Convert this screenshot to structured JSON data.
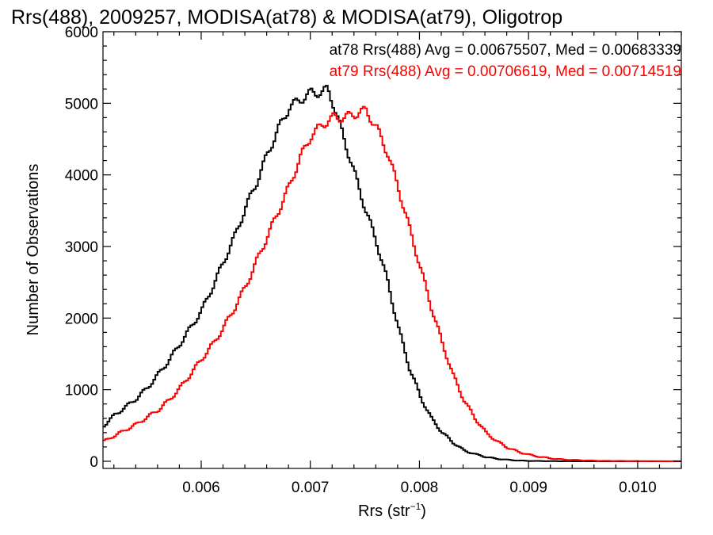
{
  "chart_data": {
    "type": "histogram",
    "title": "Rrs(488), 2009257, MODISA(at78) & MODISA(at79), Oligotrop",
    "xlabel": "Rrs (str",
    "xlabel_superscript": "−1",
    "xlabel_suffix": ")",
    "ylabel": "Number of Observations",
    "xlim": [
      0.0051,
      0.0104
    ],
    "ylim": [
      -100,
      6000
    ],
    "x_ticks": [
      0.006,
      0.007,
      0.008,
      0.009,
      0.01
    ],
    "x_tick_labels": [
      "0.006",
      "0.007",
      "0.008",
      "0.009",
      "0.010"
    ],
    "y_ticks": [
      0,
      1000,
      2000,
      3000,
      4000,
      5000,
      6000
    ],
    "y_tick_labels": [
      "0",
      "1000",
      "2000",
      "3000",
      "4000",
      "5000",
      "6000"
    ],
    "grid": false,
    "legend_position": "top-right",
    "series": [
      {
        "name": "at78",
        "color": "#000000",
        "annotation": "at78 Rrs(488) Avg = 0.00675507, Med = 0.00683339",
        "points": [
          [
            0.0051,
            500
          ],
          [
            0.0052,
            650
          ],
          [
            0.0053,
            760
          ],
          [
            0.0054,
            880
          ],
          [
            0.0055,
            1030
          ],
          [
            0.0056,
            1220
          ],
          [
            0.0057,
            1420
          ],
          [
            0.0058,
            1650
          ],
          [
            0.0059,
            1880
          ],
          [
            0.006,
            2120
          ],
          [
            0.0061,
            2450
          ],
          [
            0.0062,
            2800
          ],
          [
            0.0063,
            3150
          ],
          [
            0.0064,
            3550
          ],
          [
            0.0065,
            3900
          ],
          [
            0.0066,
            4300
          ],
          [
            0.0067,
            4650
          ],
          [
            0.0068,
            4950
          ],
          [
            0.0069,
            5050
          ],
          [
            0.007,
            5150
          ],
          [
            0.0071,
            5150
          ],
          [
            0.00715,
            5200
          ],
          [
            0.0072,
            5000
          ],
          [
            0.0073,
            4500
          ],
          [
            0.0074,
            4000
          ],
          [
            0.0075,
            3500
          ],
          [
            0.0076,
            3050
          ],
          [
            0.0077,
            2500
          ],
          [
            0.0078,
            1850
          ],
          [
            0.0079,
            1300
          ],
          [
            0.008,
            900
          ],
          [
            0.0081,
            600
          ],
          [
            0.0082,
            400
          ],
          [
            0.0083,
            260
          ],
          [
            0.0084,
            150
          ],
          [
            0.0085,
            100
          ],
          [
            0.0086,
            60
          ],
          [
            0.0087,
            35
          ],
          [
            0.0088,
            20
          ],
          [
            0.0089,
            10
          ],
          [
            0.009,
            5
          ],
          [
            0.0092,
            2
          ],
          [
            0.0094,
            0
          ],
          [
            0.0104,
            0
          ]
        ]
      },
      {
        "name": "at79",
        "color": "#ff0000",
        "annotation": "at79 Rrs(488) Avg = 0.00706619, Med = 0.00714519",
        "points": [
          [
            0.0051,
            280
          ],
          [
            0.0052,
            360
          ],
          [
            0.0053,
            440
          ],
          [
            0.0054,
            520
          ],
          [
            0.0055,
            620
          ],
          [
            0.0056,
            720
          ],
          [
            0.0057,
            860
          ],
          [
            0.0058,
            1030
          ],
          [
            0.0059,
            1230
          ],
          [
            0.006,
            1440
          ],
          [
            0.0061,
            1640
          ],
          [
            0.0062,
            1880
          ],
          [
            0.0063,
            2150
          ],
          [
            0.0064,
            2450
          ],
          [
            0.0065,
            2800
          ],
          [
            0.0066,
            3150
          ],
          [
            0.0067,
            3500
          ],
          [
            0.0068,
            3850
          ],
          [
            0.0069,
            4250
          ],
          [
            0.007,
            4550
          ],
          [
            0.0071,
            4700
          ],
          [
            0.0072,
            4800
          ],
          [
            0.0073,
            4800
          ],
          [
            0.0074,
            4850
          ],
          [
            0.0075,
            4900
          ],
          [
            0.0076,
            4650
          ],
          [
            0.0077,
            4300
          ],
          [
            0.0078,
            3800
          ],
          [
            0.0079,
            3250
          ],
          [
            0.008,
            2700
          ],
          [
            0.0081,
            2150
          ],
          [
            0.0082,
            1650
          ],
          [
            0.0083,
            1200
          ],
          [
            0.0084,
            850
          ],
          [
            0.0085,
            600
          ],
          [
            0.0086,
            400
          ],
          [
            0.0087,
            280
          ],
          [
            0.0088,
            190
          ],
          [
            0.0089,
            130
          ],
          [
            0.009,
            90
          ],
          [
            0.0091,
            60
          ],
          [
            0.0092,
            40
          ],
          [
            0.0093,
            25
          ],
          [
            0.0095,
            12
          ],
          [
            0.0097,
            5
          ],
          [
            0.01,
            2
          ],
          [
            0.0104,
            0
          ]
        ]
      }
    ]
  }
}
